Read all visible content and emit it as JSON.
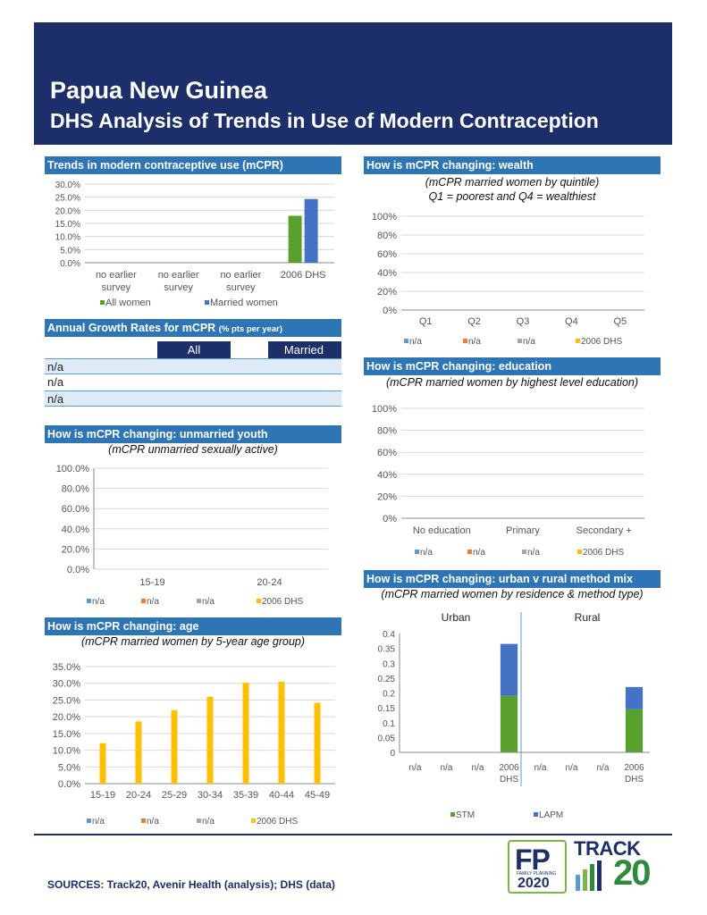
{
  "header": {
    "country": "Papua New Guinea",
    "subtitle": "DHS Analysis of Trends in Use of Modern Contraception"
  },
  "colors": {
    "brand_navy": "#1c2f6b",
    "header_blue": "#2e75b6",
    "all_women": "#5aa02c",
    "married_women": "#4472c4",
    "na1": "#5b9bd5",
    "na2": "#ed7d31",
    "na3": "#a5a5a5",
    "dhs2006": "#ffc000",
    "stm": "#5aa02c",
    "lapm": "#4472c4"
  },
  "trends": {
    "title": "Trends in modern contraceptive use (mCPR)",
    "chart_data": {
      "type": "bar",
      "categories": [
        [
          "no earlier",
          "survey"
        ],
        [
          "no earlier",
          "survey"
        ],
        [
          "no earlier",
          "survey"
        ],
        [
          "2006 DHS"
        ]
      ],
      "series": [
        {
          "name": "All women",
          "values": [
            null,
            null,
            null,
            17.9
          ]
        },
        {
          "name": "Married women",
          "values": [
            null,
            null,
            null,
            24.3
          ]
        }
      ],
      "yticks": [
        "0.0%",
        "5.0%",
        "10.0%",
        "15.0%",
        "20.0%",
        "25.0%",
        "30.0%"
      ],
      "ylim": [
        0,
        30
      ]
    }
  },
  "growth": {
    "title": "Annual Growth Rates for mCPR",
    "title_small": "(% pts per year)",
    "col_all": "All",
    "col_married": "Married",
    "rows": [
      "n/a",
      "n/a",
      "n/a"
    ]
  },
  "youth": {
    "title": "How is mCPR changing: unmarried youth",
    "subtitle": "(mCPR unmarried sexually active)",
    "chart_data": {
      "type": "bar",
      "categories": [
        "15-19",
        "20-24"
      ],
      "series": [
        {
          "name": "n/a",
          "values": [
            null,
            null
          ]
        },
        {
          "name": "n/a",
          "values": [
            null,
            null
          ]
        },
        {
          "name": "n/a",
          "values": [
            null,
            null
          ]
        },
        {
          "name": "2006 DHS",
          "values": [
            null,
            null
          ]
        }
      ],
      "yticks": [
        "0.0%",
        "20.0%",
        "40.0%",
        "60.0%",
        "80.0%",
        "100.0%"
      ],
      "ylim": [
        0,
        100
      ]
    }
  },
  "age": {
    "title": "How is mCPR changing: age",
    "subtitle": "(mCPR married women by 5-year age group)",
    "chart_data": {
      "type": "bar",
      "categories": [
        "15-19",
        "20-24",
        "25-29",
        "30-34",
        "35-39",
        "40-44",
        "45-49"
      ],
      "series": [
        {
          "name": "n/a",
          "values": [
            null,
            null,
            null,
            null,
            null,
            null,
            null
          ]
        },
        {
          "name": "n/a",
          "values": [
            null,
            null,
            null,
            null,
            null,
            null,
            null
          ]
        },
        {
          "name": "n/a",
          "values": [
            null,
            null,
            null,
            null,
            null,
            null,
            null
          ]
        },
        {
          "name": "2006 DHS",
          "values": [
            12.1,
            18.6,
            22.0,
            26.0,
            30.2,
            30.5,
            24.2
          ]
        }
      ],
      "yticks": [
        "0.0%",
        "5.0%",
        "10.0%",
        "15.0%",
        "20.0%",
        "25.0%",
        "30.0%",
        "35.0%"
      ],
      "ylim": [
        0,
        35
      ]
    }
  },
  "wealth": {
    "title": "How is mCPR changing: wealth",
    "subtitle1": "(mCPR married women by quintile)",
    "subtitle2": "Q1 = poorest and Q4 = wealthiest",
    "chart_data": {
      "type": "bar",
      "categories": [
        "Q1",
        "Q2",
        "Q3",
        "Q4",
        "Q5"
      ],
      "series": [
        {
          "name": "n/a",
          "values": [
            null,
            null,
            null,
            null,
            null
          ]
        },
        {
          "name": "n/a",
          "values": [
            null,
            null,
            null,
            null,
            null
          ]
        },
        {
          "name": "n/a",
          "values": [
            null,
            null,
            null,
            null,
            null
          ]
        },
        {
          "name": "2006 DHS",
          "values": [
            null,
            null,
            null,
            null,
            null
          ]
        }
      ],
      "yticks": [
        "0%",
        "20%",
        "40%",
        "60%",
        "80%",
        "100%"
      ],
      "ylim": [
        0,
        100
      ]
    }
  },
  "education": {
    "title": "How is mCPR changing: education",
    "subtitle": "(mCPR married women by highest level education)",
    "chart_data": {
      "type": "bar",
      "categories": [
        "No education",
        "Primary",
        "Secondary +"
      ],
      "series": [
        {
          "name": "n/a",
          "values": [
            null,
            null,
            null
          ]
        },
        {
          "name": "n/a",
          "values": [
            null,
            null,
            null
          ]
        },
        {
          "name": "n/a",
          "values": [
            null,
            null,
            null
          ]
        },
        {
          "name": "2006 DHS",
          "values": [
            null,
            null,
            null
          ]
        }
      ],
      "yticks": [
        "0%",
        "20%",
        "40%",
        "60%",
        "80%",
        "100%"
      ],
      "ylim": [
        0,
        100
      ]
    }
  },
  "method": {
    "title": "How is mCPR changing: urban v rural method mix",
    "subtitle": "(mCPR married women by residence & method type)",
    "chart_data": {
      "type": "bar",
      "stacked": true,
      "groups": [
        "Urban",
        "Rural"
      ],
      "categories": [
        [
          "n/a"
        ],
        [
          "n/a"
        ],
        [
          "n/a"
        ],
        [
          "2006",
          "DHS"
        ],
        [
          "n/a"
        ],
        [
          "n/a"
        ],
        [
          "n/a"
        ],
        [
          "2006",
          "DHS"
        ]
      ],
      "series": [
        {
          "name": "STM",
          "values": [
            null,
            null,
            null,
            0.19,
            null,
            null,
            null,
            0.145
          ]
        },
        {
          "name": "LAPM",
          "values": [
            null,
            null,
            null,
            0.175,
            null,
            null,
            null,
            0.075
          ]
        }
      ],
      "yticks": [
        "0",
        "0.05",
        "0.1",
        "0.15",
        "0.2",
        "0.25",
        "0.3",
        "0.35",
        "0.4"
      ],
      "ylim": [
        0,
        0.4
      ]
    }
  },
  "footer": {
    "sources": "SOURCES: Track20, Avenir Health (analysis); DHS (data)",
    "logo_fp": "FP",
    "logo_fp_small": "FAMILY PLANNING",
    "logo_fp_year": "2020",
    "logo_track": "TRACK",
    "logo_track_num": "20"
  }
}
